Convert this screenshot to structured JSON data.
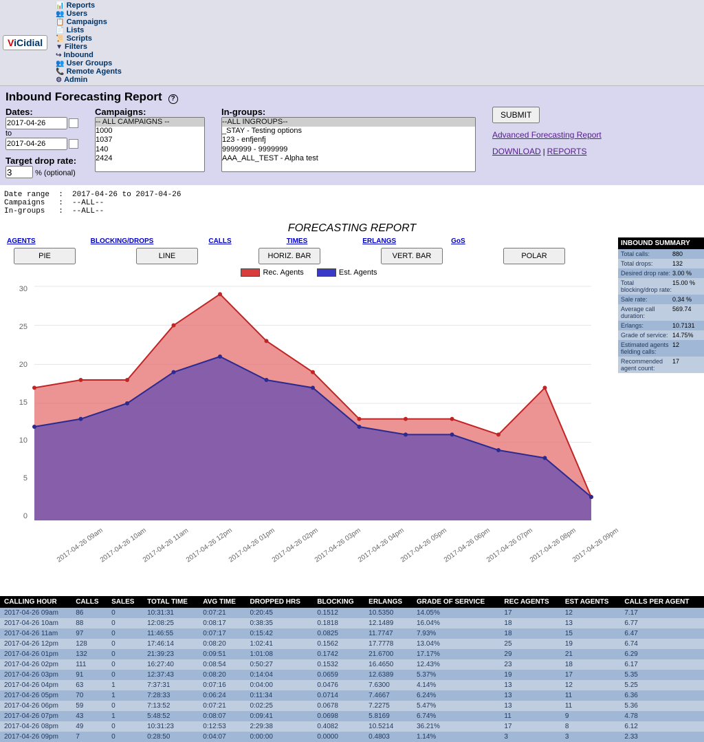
{
  "nav": {
    "logo": "ViCidial",
    "items": [
      "Reports",
      "Users",
      "Campaigns",
      "Lists",
      "Scripts",
      "Filters",
      "Inbound",
      "User Groups",
      "Remote Agents",
      "Admin"
    ]
  },
  "page_title": "Inbound Forecasting Report",
  "filters": {
    "dates_label": "Dates:",
    "date_from": "2017-04-26",
    "to_label": "to",
    "date_to": "2017-04-26",
    "target_label": "Target drop rate:",
    "target_value": "3",
    "target_opt": "% (optional)",
    "campaigns_label": "Campaigns:",
    "campaigns_options": [
      "-- ALL CAMPAIGNS --",
      "1000",
      "1037",
      "140",
      "2424"
    ],
    "ingroups_label": "In-groups:",
    "ingroups_options": [
      "--ALL INGROUPS--",
      "_STAY - Testing options",
      "123 - enfjenfj",
      "9999999 - 9999999",
      "AAA_ALL_TEST - Alpha test"
    ],
    "submit": "SUBMIT",
    "adv_link": "Advanced Forecasting Report",
    "download": "DOWNLOAD",
    "reports": "REPORTS"
  },
  "meta_text": "Date range  :  2017-04-26 to 2017-04-26\nCampaigns   :  --ALL--\nIn-groups   :  --ALL--",
  "report_title": "FORECASTING REPORT",
  "tabs": [
    "AGENTS",
    "BLOCKING/DROPS",
    "CALLS",
    "TIMES",
    "ERLANGS",
    "GoS"
  ],
  "chart_buttons": [
    "PIE",
    "LINE",
    "HORIZ. BAR",
    "VERT. BAR",
    "POLAR"
  ],
  "legend": {
    "rec": "Rec. Agents",
    "rec_color": "#d83c3c",
    "est": "Est. Agents",
    "est_color": "#3a3ac8"
  },
  "chart": {
    "type": "area",
    "x_labels": [
      "2017-04-26 09am",
      "2017-04-26 10am",
      "2017-04-26 11am",
      "2017-04-26 12pm",
      "2017-04-26 01pm",
      "2017-04-26 02pm",
      "2017-04-26 03pm",
      "2017-04-26 04pm",
      "2017-04-26 05pm",
      "2017-04-26 06pm",
      "2017-04-26 07pm",
      "2017-04-26 08pm",
      "2017-04-26 09pm"
    ],
    "rec_values": [
      17,
      18,
      18,
      25,
      29,
      23,
      19,
      13,
      13,
      13,
      11,
      17,
      3
    ],
    "est_values": [
      12,
      13,
      15,
      19,
      21,
      18,
      17,
      12,
      11,
      11,
      9,
      8,
      3
    ],
    "ylim": [
      0,
      30
    ],
    "ytick_step": 5,
    "rec_fill": "#e46a6a",
    "rec_fill_opacity": 0.72,
    "est_fill": "#6a4fb0",
    "est_fill_opacity": 0.78,
    "rec_stroke": "#c02525",
    "est_stroke": "#2a2a90",
    "grid_color": "#e5e5e5",
    "axis_color": "#888888",
    "label_color": "#666666",
    "plot_bg": "#ffffff"
  },
  "summary": {
    "header": "INBOUND SUMMARY",
    "rows": [
      {
        "k": "Total calls:",
        "v": "880"
      },
      {
        "k": "Total drops:",
        "v": "132"
      },
      {
        "k": "Desired drop rate:",
        "v": "3.00 %"
      },
      {
        "k": "Total blocking/drop rate:",
        "v": "15.00 %"
      },
      {
        "k": "Sale rate:",
        "v": "0.34 %"
      },
      {
        "k": "Average call duration:",
        "v": "569.74"
      },
      {
        "k": "Erlangs:",
        "v": "10.7131"
      },
      {
        "k": "Grade of service:",
        "v": "14.75%"
      },
      {
        "k": "Estimated agents fielding calls:",
        "v": "12"
      },
      {
        "k": "Recommended agent count:",
        "v": "17"
      }
    ]
  },
  "table": {
    "columns": [
      "CALLING HOUR",
      "CALLS",
      "SALES",
      "TOTAL TIME",
      "AVG TIME",
      "DROPPED HRS",
      "BLOCKING",
      "ERLANGS",
      "GRADE OF SERVICE",
      "REC AGENTS",
      "EST AGENTS",
      "CALLS PER AGENT"
    ],
    "rows": [
      [
        "2017-04-26 09am",
        "86",
        "0",
        "10:31:31",
        "0:07:21",
        "0:20:45",
        "0.1512",
        "10.5350",
        "14.05%",
        "17",
        "12",
        "7.17"
      ],
      [
        "2017-04-26 10am",
        "88",
        "0",
        "12:08:25",
        "0:08:17",
        "0:38:35",
        "0.1818",
        "12.1489",
        "16.04%",
        "18",
        "13",
        "6.77"
      ],
      [
        "2017-04-26 11am",
        "97",
        "0",
        "11:46:55",
        "0:07:17",
        "0:15:42",
        "0.0825",
        "11.7747",
        "7.93%",
        "18",
        "15",
        "6.47"
      ],
      [
        "2017-04-26 12pm",
        "128",
        "0",
        "17:46:14",
        "0:08:20",
        "1:02:41",
        "0.1562",
        "17.7778",
        "13.04%",
        "25",
        "19",
        "6.74"
      ],
      [
        "2017-04-26 01pm",
        "132",
        "0",
        "21:39:23",
        "0:09:51",
        "1:01:08",
        "0.1742",
        "21.6700",
        "17.17%",
        "29",
        "21",
        "6.29"
      ],
      [
        "2017-04-26 02pm",
        "111",
        "0",
        "16:27:40",
        "0:08:54",
        "0:50:27",
        "0.1532",
        "16.4650",
        "12.43%",
        "23",
        "18",
        "6.17"
      ],
      [
        "2017-04-26 03pm",
        "91",
        "0",
        "12:37:43",
        "0:08:20",
        "0:14:04",
        "0.0659",
        "12.6389",
        "5.37%",
        "19",
        "17",
        "5.35"
      ],
      [
        "2017-04-26 04pm",
        "63",
        "1",
        "7:37:31",
        "0:07:16",
        "0:04:00",
        "0.0476",
        "7.6300",
        "4.14%",
        "13",
        "12",
        "5.25"
      ],
      [
        "2017-04-26 05pm",
        "70",
        "1",
        "7:28:33",
        "0:06:24",
        "0:11:34",
        "0.0714",
        "7.4667",
        "6.24%",
        "13",
        "11",
        "6.36"
      ],
      [
        "2017-04-26 06pm",
        "59",
        "0",
        "7:13:52",
        "0:07:21",
        "0:02:25",
        "0.0678",
        "7.2275",
        "5.47%",
        "13",
        "11",
        "5.36"
      ],
      [
        "2017-04-26 07pm",
        "43",
        "1",
        "5:48:52",
        "0:08:07",
        "0:09:41",
        "0.0698",
        "5.8169",
        "6.74%",
        "11",
        "9",
        "4.78"
      ],
      [
        "2017-04-26 08pm",
        "49",
        "0",
        "10:31:23",
        "0:12:53",
        "2:29:38",
        "0.4082",
        "10.5214",
        "36.21%",
        "17",
        "8",
        "6.12"
      ],
      [
        "2017-04-26 09pm",
        "7",
        "0",
        "0:28:50",
        "0:04:07",
        "0:00:00",
        "0.0000",
        "0.4803",
        "1.14%",
        "3",
        "3",
        "2.33"
      ]
    ]
  }
}
